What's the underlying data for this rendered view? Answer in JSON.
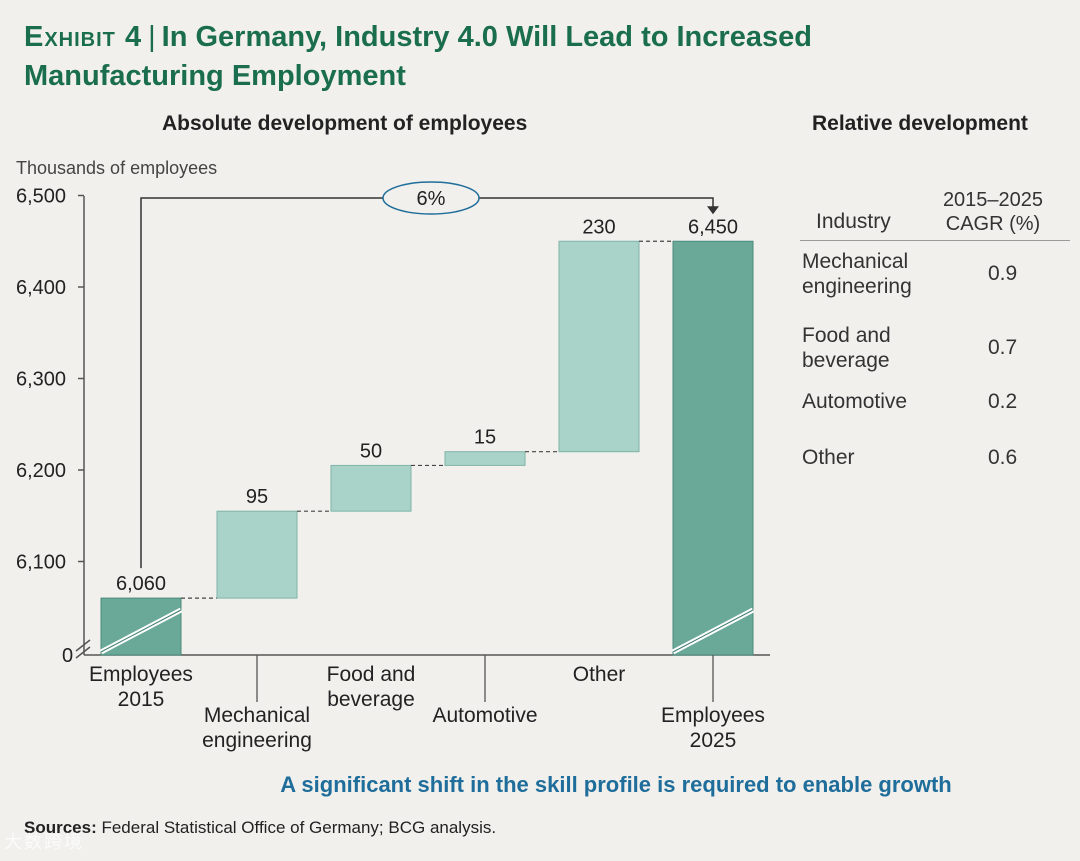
{
  "exhibit": {
    "label": "Exhibit 4",
    "title": "In Germany, Industry 4.0 Will Lead to Increased",
    "title_line2": "Manufacturing Employment"
  },
  "left_panel_title": "Absolute development of employees",
  "right_panel_title": "Relative development",
  "chart_data": {
    "type": "waterfall",
    "title": "Absolute development of employees",
    "ylabel": "Thousands of employees",
    "ylim": [
      6000,
      6500
    ],
    "yticks": [
      6100,
      6200,
      6300,
      6400,
      6500
    ],
    "ytick_labels": [
      "6,100",
      "6,200",
      "6,300",
      "6,400",
      "6,500"
    ],
    "y_zero_label": "0",
    "axis_break": true,
    "bars": [
      {
        "label_lines": [
          "Employees",
          "2015"
        ],
        "kind": "total",
        "start": 6000,
        "end": 6060,
        "value_label": "6,060"
      },
      {
        "label_lines": [
          "Mechanical",
          "engineering"
        ],
        "kind": "delta",
        "start": 6060,
        "end": 6155,
        "value_label": "95"
      },
      {
        "label_lines": [
          "Food and",
          "beverage"
        ],
        "kind": "delta",
        "start": 6155,
        "end": 6205,
        "value_label": "50"
      },
      {
        "label_lines": [
          "Automotive"
        ],
        "kind": "delta",
        "start": 6205,
        "end": 6220,
        "value_label": "15"
      },
      {
        "label_lines": [
          "Other"
        ],
        "kind": "delta",
        "start": 6220,
        "end": 6450,
        "value_label": "230"
      },
      {
        "label_lines": [
          "Employees",
          "2025"
        ],
        "kind": "total",
        "start": 6000,
        "end": 6450,
        "value_label": "6,450"
      }
    ],
    "growth_annotation": "6%",
    "colors": {
      "total": "#6aa898",
      "delta": "#a9d2c8",
      "axis": "#555555",
      "text": "#222222"
    }
  },
  "table": {
    "header_industry": "Industry",
    "header_cagr_line1": "2015–2025",
    "header_cagr_line2": "CAGR (%)",
    "rows": [
      {
        "industry": "Mechanical engineering",
        "value": "0.9"
      },
      {
        "industry": "Food and beverage",
        "value": "0.7"
      },
      {
        "industry": "Automotive",
        "value": "0.2"
      },
      {
        "industry": "Other",
        "value": "0.6"
      }
    ]
  },
  "tagline": "A significant shift in the skill profile is required to enable growth",
  "sources_label": "Sources:",
  "sources_text": " Federal Statistical Office of Germany; BCG analysis.",
  "watermark": "大数跨境"
}
